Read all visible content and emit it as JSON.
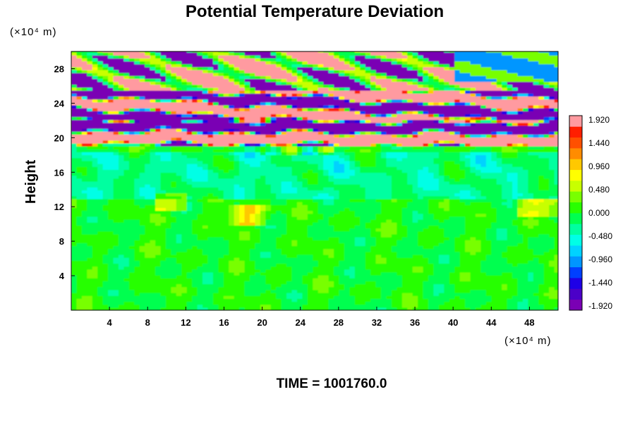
{
  "chart_data": {
    "type": "heatmap",
    "title": "Potential Temperature Deviation",
    "ylabel": "Height",
    "x_unit_label": "(×10⁴ m)",
    "y_unit_label": "(×10⁴ m)",
    "time_label": "TIME = 1001760.0",
    "xlim": [
      0,
      51
    ],
    "ylim": [
      0,
      30
    ],
    "x_ticks": [
      4,
      8,
      12,
      16,
      20,
      24,
      28,
      32,
      36,
      40,
      44,
      48
    ],
    "y_ticks": [
      4,
      8,
      12,
      16,
      20,
      24,
      28
    ],
    "colorbar": {
      "min": -1.92,
      "max": 1.92,
      "tick_values": [
        1.92,
        1.44,
        0.96,
        0.48,
        0.0,
        -0.48,
        -0.96,
        -1.44,
        -1.92
      ],
      "tick_labels": [
        "1.920",
        "1.440",
        "0.960",
        "0.480",
        "0.000",
        "-0.480",
        "-0.960",
        "-1.440",
        "-1.920"
      ],
      "colors": [
        "#7a00b4",
        "#4b00c8",
        "#1e00e6",
        "#0040ff",
        "#0096ff",
        "#00d2ff",
        "#00ffe6",
        "#00ffa0",
        "#00ff50",
        "#28ff00",
        "#78ff00",
        "#c8ff00",
        "#ffff00",
        "#ffc800",
        "#ff8c00",
        "#ff5000",
        "#ff1e00",
        "#ff9aa0"
      ]
    },
    "field_description_values": {
      "lower_layer_height_range": [
        0,
        19
      ],
      "lower_layer_typical_value": 0.0,
      "layered_band_height_range": [
        19,
        30
      ],
      "layered_band_extremes": [
        -1.92,
        1.92
      ]
    }
  }
}
